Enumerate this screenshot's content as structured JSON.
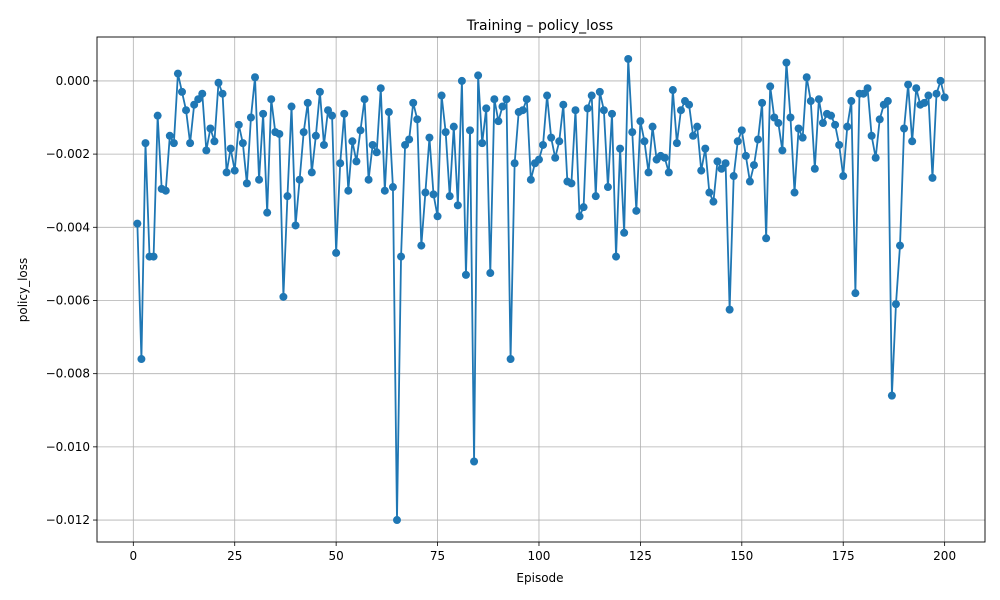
{
  "chart_data": {
    "type": "line",
    "title": "Training – policy_loss",
    "xlabel": "Episode",
    "ylabel": "policy_loss",
    "xlim": [
      -8.95,
      209.95
    ],
    "ylim": [
      -0.0126,
      0.0012
    ],
    "xticks": [
      0,
      25,
      50,
      75,
      100,
      125,
      150,
      175,
      200
    ],
    "yticks": [
      0.0,
      -0.002,
      -0.004,
      -0.006,
      -0.008,
      -0.01,
      -0.012
    ],
    "ytick_labels": [
      "0.000",
      "−0.002",
      "−0.004",
      "−0.006",
      "−0.008",
      "−0.010",
      "−0.012"
    ],
    "grid": true,
    "markers": true,
    "color": "#1f77b4",
    "series": [
      {
        "name": "",
        "x": [
          1,
          2,
          3,
          4,
          5,
          6,
          7,
          8,
          9,
          10,
          11,
          12,
          13,
          14,
          15,
          16,
          17,
          18,
          19,
          20,
          21,
          22,
          23,
          24,
          25,
          26,
          27,
          28,
          29,
          30,
          31,
          32,
          33,
          34,
          35,
          36,
          37,
          38,
          39,
          40,
          41,
          42,
          43,
          44,
          45,
          46,
          47,
          48,
          49,
          50,
          51,
          52,
          53,
          54,
          55,
          56,
          57,
          58,
          59,
          60,
          61,
          62,
          63,
          64,
          65,
          66,
          67,
          68,
          69,
          70,
          71,
          72,
          73,
          74,
          75,
          76,
          77,
          78,
          79,
          80,
          81,
          82,
          83,
          84,
          85,
          86,
          87,
          88,
          89,
          90,
          91,
          92,
          93,
          94,
          95,
          96,
          97,
          98,
          99,
          100,
          101,
          102,
          103,
          104,
          105,
          106,
          107,
          108,
          109,
          110,
          111,
          112,
          113,
          114,
          115,
          116,
          117,
          118,
          119,
          120,
          121,
          122,
          123,
          124,
          125,
          126,
          127,
          128,
          129,
          130,
          131,
          132,
          133,
          134,
          135,
          136,
          137,
          138,
          139,
          140,
          141,
          142,
          143,
          144,
          145,
          146,
          147,
          148,
          149,
          150,
          151,
          152,
          153,
          154,
          155,
          156,
          157,
          158,
          159,
          160,
          161,
          162,
          163,
          164,
          165,
          166,
          167,
          168,
          169,
          170,
          171,
          172,
          173,
          174,
          175,
          176,
          177,
          178,
          179,
          180,
          181,
          182,
          183,
          184,
          185,
          186,
          187,
          188,
          189,
          190,
          191,
          192,
          193,
          194,
          195,
          196,
          197,
          198,
          199,
          200
        ],
        "y": [
          -0.0039,
          -0.0076,
          -0.0017,
          -0.0048,
          -0.0048,
          -0.00095,
          -0.00295,
          -0.003,
          -0.0015,
          -0.0017,
          0.0002,
          -0.0003,
          -0.0008,
          -0.0017,
          -0.00065,
          -0.0005,
          -0.00035,
          -0.0019,
          -0.0013,
          -0.00165,
          -5e-05,
          -0.00035,
          -0.0025,
          -0.00185,
          -0.00245,
          -0.0012,
          -0.0017,
          -0.0028,
          -0.001,
          0.0001,
          -0.0027,
          -0.0009,
          -0.0036,
          -0.0005,
          -0.0014,
          -0.00145,
          -0.0059,
          -0.00315,
          -0.0007,
          -0.00395,
          -0.0027,
          -0.0014,
          -0.0006,
          -0.0025,
          -0.0015,
          -0.0003,
          -0.00175,
          -0.0008,
          -0.00095,
          -0.0047,
          -0.00225,
          -0.0009,
          -0.003,
          -0.00165,
          -0.0022,
          -0.00135,
          -0.0005,
          -0.0027,
          -0.00175,
          -0.00195,
          -0.0002,
          -0.003,
          -0.00085,
          -0.0029,
          -0.012,
          -0.0048,
          -0.00175,
          -0.0016,
          -0.0006,
          -0.00105,
          -0.0045,
          -0.00305,
          -0.00155,
          -0.0031,
          -0.0037,
          -0.0004,
          -0.0014,
          -0.00315,
          -0.00125,
          -0.0034,
          0.0,
          -0.0053,
          -0.00135,
          -0.0104,
          0.00015,
          -0.0017,
          -0.00075,
          -0.00525,
          -0.0005,
          -0.0011,
          -0.0007,
          -0.0005,
          -0.0076,
          -0.00225,
          -0.00085,
          -0.0008,
          -0.0005,
          -0.0027,
          -0.00225,
          -0.00215,
          -0.00175,
          -0.0004,
          -0.00155,
          -0.0021,
          -0.00165,
          -0.00065,
          -0.00275,
          -0.0028,
          -0.0008,
          -0.0037,
          -0.00345,
          -0.00075,
          -0.0004,
          -0.00315,
          -0.0003,
          -0.0008,
          -0.0029,
          -0.0009,
          -0.0048,
          -0.00185,
          -0.00415,
          0.0006,
          -0.0014,
          -0.00355,
          -0.0011,
          -0.00165,
          -0.0025,
          -0.00125,
          -0.00215,
          -0.00205,
          -0.0021,
          -0.0025,
          -0.00025,
          -0.0017,
          -0.0008,
          -0.00055,
          -0.00065,
          -0.0015,
          -0.00125,
          -0.00245,
          -0.00185,
          -0.00305,
          -0.0033,
          -0.0022,
          -0.0024,
          -0.00225,
          -0.00625,
          -0.0026,
          -0.00165,
          -0.00135,
          -0.00205,
          -0.00275,
          -0.0023,
          -0.0016,
          -0.0006,
          -0.0043,
          -0.00015,
          -0.001,
          -0.00115,
          -0.0019,
          0.0005,
          -0.001,
          -0.00305,
          -0.0013,
          -0.00155,
          0.0001,
          -0.00055,
          -0.0024,
          -0.0005,
          -0.00115,
          -0.0009,
          -0.00095,
          -0.0012,
          -0.00175,
          -0.0026,
          -0.00125,
          -0.00055,
          -0.0058,
          -0.00035,
          -0.00035,
          -0.0002,
          -0.0015,
          -0.0021,
          -0.00105,
          -0.00065,
          -0.00055,
          -0.0086,
          -0.0061,
          -0.0045,
          -0.0013,
          -0.0001,
          -0.00165,
          -0.0002,
          -0.00065,
          -0.0006,
          -0.0004,
          -0.00265,
          -0.00035,
          0.0,
          -0.00045
        ]
      }
    ]
  }
}
